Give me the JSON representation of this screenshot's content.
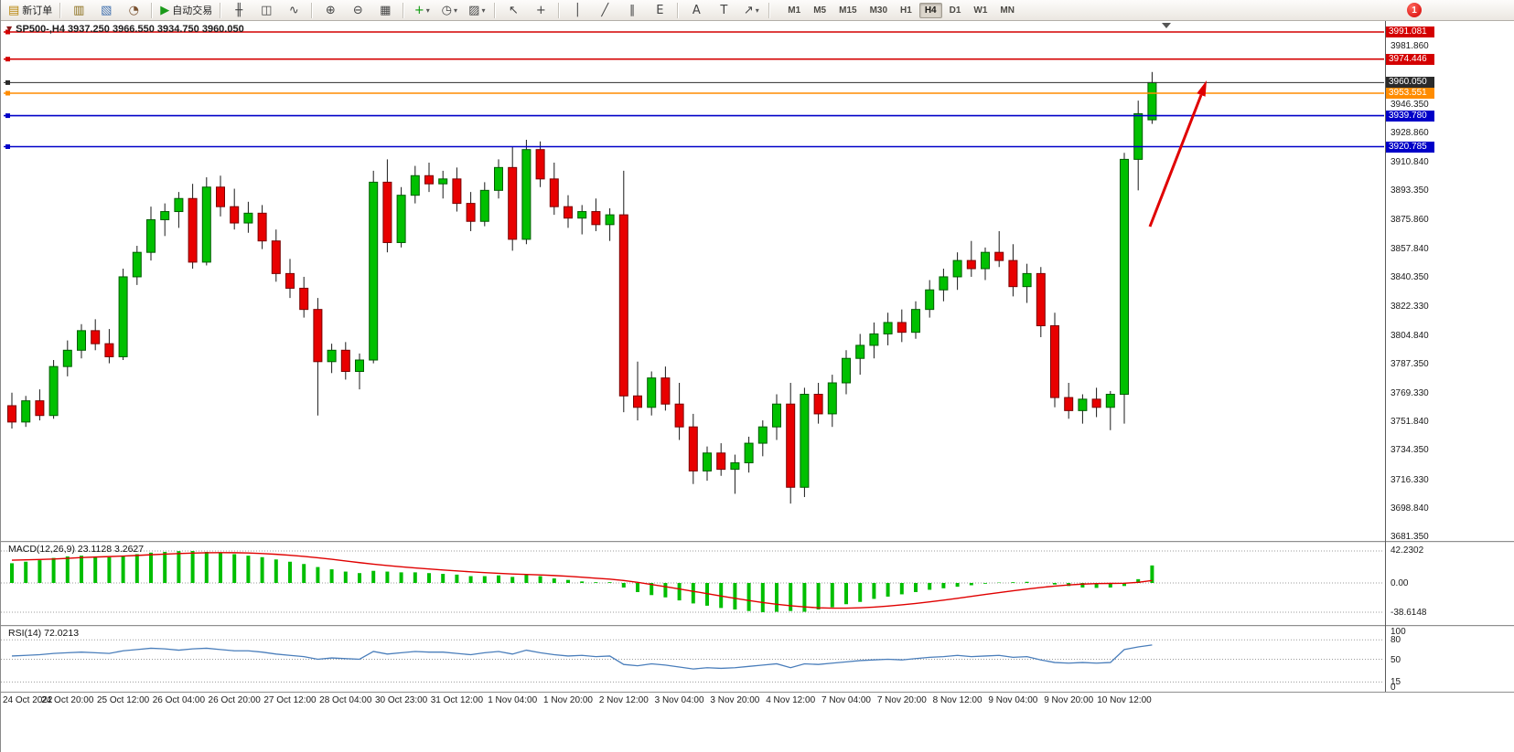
{
  "toolbar": {
    "groups": [
      {
        "items": [
          {
            "name": "new-order-button",
            "icon": "▤",
            "icon_color": "#b8860b",
            "label": "新订单"
          }
        ]
      },
      {
        "items": [
          {
            "name": "chart-window-button",
            "icon": "▥",
            "icon_color": "#8a6d1a"
          },
          {
            "name": "profiles-button",
            "icon": "▧",
            "icon_color": "#3f6fae"
          },
          {
            "name": "refresh-button",
            "icon": "◔",
            "icon_color": "#7a5230"
          }
        ]
      },
      {
        "items": [
          {
            "name": "autotrading-button",
            "icon": "▶",
            "icon_color": "#1a9a1a",
            "label": "自动交易"
          }
        ]
      },
      {
        "items": [
          {
            "name": "bar-chart-button",
            "icon": "╫",
            "icon_color": "#444"
          },
          {
            "name": "candlestick-chart-button",
            "icon": "◫",
            "icon_color": "#444"
          },
          {
            "name": "line-chart-button",
            "icon": "∿",
            "icon_color": "#444"
          }
        ]
      },
      {
        "items": [
          {
            "name": "zoom-in-button",
            "icon": "⊕",
            "icon_color": "#444"
          },
          {
            "name": "zoom-out-button",
            "icon": "⊖",
            "icon_color": "#444"
          },
          {
            "name": "tile-windows-button",
            "icon": "▦",
            "icon_color": "#444"
          }
        ]
      },
      {
        "items": [
          {
            "name": "indicators-button",
            "icon": "+",
            "icon_color": "#0a9a0a",
            "caret": true
          },
          {
            "name": "periods-button",
            "icon": "◷",
            "icon_color": "#444",
            "caret": true
          },
          {
            "name": "templates-button",
            "icon": "▨",
            "icon_color": "#444",
            "caret": true
          }
        ]
      },
      {
        "items": [
          {
            "name": "cursor-button",
            "icon": "↖",
            "icon_color": "#444"
          },
          {
            "name": "crosshair-button",
            "icon": "+",
            "icon_color": "#444"
          }
        ]
      },
      {
        "items": [
          {
            "name": "vertical-line-button",
            "icon": "│",
            "icon_color": "#444"
          },
          {
            "name": "trendline-button",
            "icon": "╱",
            "icon_color": "#444"
          },
          {
            "name": "channel-button",
            "icon": "∥",
            "icon_color": "#444"
          },
          {
            "name": "elliott-tool-button",
            "icon": "E",
            "icon_color": "#444"
          }
        ]
      },
      {
        "items": [
          {
            "name": "text-button",
            "icon": "A",
            "icon_color": "#444"
          },
          {
            "name": "text-label-button",
            "icon": "T",
            "icon_color": "#444"
          },
          {
            "name": "arrows-button",
            "icon": "↗",
            "icon_color": "#444",
            "caret": true
          }
        ]
      }
    ],
    "timeframes": [
      "M1",
      "M5",
      "M15",
      "M30",
      "H1",
      "H4",
      "D1",
      "W1",
      "MN"
    ],
    "active_timeframe": "H4",
    "notification_badge": "1"
  },
  "chart": {
    "info_line": "SP500-,H4 3937.250 3966.550 3934.750 3960.050"
  },
  "indicators": {
    "macd": {
      "name": "MACD(12,26,9)",
      "macd_value": "23.1128",
      "signal_value": "3.2627"
    },
    "rsi": {
      "name": "RSI(14)",
      "value": "72.0213"
    }
  },
  "colors": {
    "bull": "#00C000",
    "bear": "#E80000",
    "wick": "#1a1a1a",
    "macd_hist": "#00BE00",
    "macd_signal": "#E00000",
    "rsi_line": "#4a7ebb",
    "line_red": "#D40000",
    "line_orange": "#FF8C00",
    "line_blue": "#0000C8",
    "current_price": "#2b2b2b",
    "arrow": "#E00000"
  },
  "chart_data": [
    {
      "type": "candlestick",
      "symbol": "SP500-",
      "timeframe": "H4",
      "current_bar": {
        "open": 3937.25,
        "high": 3966.55,
        "low": 3934.75,
        "close": 3960.05
      },
      "ylim": [
        3681.35,
        3991.081
      ],
      "y_ticks": [
        "3981.860",
        "3946.350",
        "3928.860",
        "3910.840",
        "3893.350",
        "3875.860",
        "3857.840",
        "3840.350",
        "3822.330",
        "3804.840",
        "3787.350",
        "3769.330",
        "3751.840",
        "3734.350",
        "3716.330",
        "3698.840",
        "3681.350"
      ],
      "price_lines": [
        {
          "price": 3991.081,
          "label": "3991.081",
          "color": "#D40000",
          "type": "hline"
        },
        {
          "price": 3974.446,
          "label": "3974.446",
          "color": "#D40000",
          "type": "hline"
        },
        {
          "price": 3960.05,
          "label": "3960.050",
          "color": "#2b2b2b",
          "type": "current"
        },
        {
          "price": 3953.551,
          "label": "3953.551",
          "color": "#FF8C00",
          "type": "hline"
        },
        {
          "price": 3939.78,
          "label": "3939.780",
          "color": "#0000C8",
          "type": "hline"
        },
        {
          "price": 3920.785,
          "label": "3920.785",
          "color": "#0000C8",
          "type": "hline"
        }
      ],
      "ohlc": [
        [
          3762,
          3770,
          3748,
          3752
        ],
        [
          3752,
          3768,
          3749,
          3765
        ],
        [
          3765,
          3772,
          3753,
          3756
        ],
        [
          3756,
          3790,
          3754,
          3786
        ],
        [
          3786,
          3802,
          3780,
          3796
        ],
        [
          3796,
          3812,
          3791,
          3808
        ],
        [
          3808,
          3815,
          3796,
          3800
        ],
        [
          3800,
          3809,
          3788,
          3792
        ],
        [
          3792,
          3846,
          3790,
          3841
        ],
        [
          3841,
          3860,
          3836,
          3856
        ],
        [
          3856,
          3884,
          3851,
          3876
        ],
        [
          3876,
          3886,
          3866,
          3881
        ],
        [
          3881,
          3893,
          3871,
          3889
        ],
        [
          3889,
          3898,
          3846,
          3850
        ],
        [
          3850,
          3902,
          3848,
          3896
        ],
        [
          3896,
          3903,
          3878,
          3884
        ],
        [
          3884,
          3895,
          3870,
          3874
        ],
        [
          3874,
          3887,
          3868,
          3880
        ],
        [
          3880,
          3885,
          3858,
          3863
        ],
        [
          3863,
          3870,
          3838,
          3843
        ],
        [
          3843,
          3852,
          3828,
          3834
        ],
        [
          3834,
          3841,
          3816,
          3821
        ],
        [
          3821,
          3828,
          3756,
          3789
        ],
        [
          3789,
          3800,
          3782,
          3796
        ],
        [
          3796,
          3801,
          3778,
          3783
        ],
        [
          3783,
          3794,
          3772,
          3790
        ],
        [
          3790,
          3906,
          3788,
          3899
        ],
        [
          3899,
          3913,
          3856,
          3862
        ],
        [
          3862,
          3896,
          3859,
          3891
        ],
        [
          3891,
          3909,
          3886,
          3903
        ],
        [
          3903,
          3911,
          3893,
          3898
        ],
        [
          3898,
          3906,
          3889,
          3901
        ],
        [
          3901,
          3908,
          3881,
          3886
        ],
        [
          3886,
          3893,
          3869,
          3875
        ],
        [
          3875,
          3899,
          3872,
          3894
        ],
        [
          3894,
          3913,
          3889,
          3908
        ],
        [
          3908,
          3921,
          3857,
          3864
        ],
        [
          3864,
          3925,
          3861,
          3919
        ],
        [
          3919,
          3924,
          3896,
          3901
        ],
        [
          3901,
          3911,
          3879,
          3884
        ],
        [
          3884,
          3891,
          3871,
          3877
        ],
        [
          3877,
          3885,
          3867,
          3881
        ],
        [
          3881,
          3889,
          3869,
          3873
        ],
        [
          3873,
          3883,
          3863,
          3879
        ],
        [
          3879,
          3906,
          3758,
          3768
        ],
        [
          3768,
          3789,
          3753,
          3761
        ],
        [
          3761,
          3783,
          3756,
          3779
        ],
        [
          3779,
          3786,
          3759,
          3763
        ],
        [
          3763,
          3776,
          3741,
          3749
        ],
        [
          3749,
          3757,
          3714,
          3722
        ],
        [
          3722,
          3737,
          3716,
          3733
        ],
        [
          3733,
          3739,
          3719,
          3723
        ],
        [
          3723,
          3732,
          3708,
          3727
        ],
        [
          3727,
          3743,
          3721,
          3739
        ],
        [
          3739,
          3753,
          3731,
          3749
        ],
        [
          3749,
          3769,
          3741,
          3763
        ],
        [
          3763,
          3776,
          3702,
          3712
        ],
        [
          3712,
          3773,
          3706,
          3769
        ],
        [
          3769,
          3776,
          3751,
          3757
        ],
        [
          3757,
          3781,
          3749,
          3776
        ],
        [
          3776,
          3796,
          3769,
          3791
        ],
        [
          3791,
          3806,
          3781,
          3799
        ],
        [
          3799,
          3813,
          3791,
          3806
        ],
        [
          3806,
          3819,
          3799,
          3813
        ],
        [
          3813,
          3821,
          3801,
          3807
        ],
        [
          3807,
          3826,
          3803,
          3821
        ],
        [
          3821,
          3839,
          3816,
          3833
        ],
        [
          3833,
          3846,
          3826,
          3841
        ],
        [
          3841,
          3856,
          3833,
          3851
        ],
        [
          3851,
          3863,
          3841,
          3846
        ],
        [
          3846,
          3859,
          3839,
          3856
        ],
        [
          3856,
          3869,
          3847,
          3851
        ],
        [
          3851,
          3861,
          3829,
          3835
        ],
        [
          3835,
          3849,
          3825,
          3843
        ],
        [
          3843,
          3847,
          3804,
          3811
        ],
        [
          3811,
          3819,
          3761,
          3767
        ],
        [
          3767,
          3776,
          3754,
          3759
        ],
        [
          3759,
          3769,
          3751,
          3766
        ],
        [
          3766,
          3773,
          3755,
          3761
        ],
        [
          3761,
          3771,
          3747,
          3769
        ],
        [
          3769,
          3917,
          3751,
          3913
        ],
        [
          3913,
          3949,
          3894,
          3941
        ],
        [
          3937.25,
          3966.55,
          3934.75,
          3960.05
        ]
      ],
      "time_labels": [
        "24 Oct 2022",
        "24 Oct 20:00",
        "25 Oct 12:00",
        "26 Oct 04:00",
        "26 Oct 20:00",
        "27 Oct 12:00",
        "28 Oct 04:00",
        "30 Oct 23:00",
        "31 Oct 12:00",
        "1 Nov 04:00",
        "1 Nov 20:00",
        "2 Nov 12:00",
        "3 Nov 04:00",
        "3 Nov 20:00",
        "4 Nov 12:00",
        "7 Nov 04:00",
        "7 Nov 20:00",
        "8 Nov 12:00",
        "9 Nov 04:00",
        "9 Nov 20:00",
        "10 Nov 12:00"
      ],
      "label_step": 4,
      "annotations": [
        {
          "type": "arrow",
          "color": "#E00000",
          "note": "up-trend arrow pointing to new high"
        }
      ]
    },
    {
      "type": "bar",
      "name": "MACD(12,26,9)",
      "values": {
        "macd": 23.1128,
        "signal": 3.2627
      },
      "scale_labels": [
        "42.2302",
        "0.00",
        "-38.6148"
      ],
      "ylim": [
        -45,
        47
      ],
      "histogram": [
        26,
        28,
        30,
        33,
        35,
        36,
        35,
        34,
        36,
        38,
        40,
        41,
        42,
        42.2,
        41,
        40,
        38,
        36,
        34,
        31,
        28,
        25,
        21,
        18,
        15,
        13,
        16,
        15,
        14,
        14,
        13,
        12,
        11,
        9,
        9,
        10,
        8,
        11,
        9,
        6,
        4,
        2,
        1,
        1,
        -6,
        -12,
        -16,
        -19,
        -23,
        -27,
        -30,
        -33,
        -35,
        -37,
        -38.6,
        -38,
        -37,
        -38,
        -35,
        -32,
        -28,
        -25,
        -21,
        -18,
        -15,
        -12,
        -9,
        -7,
        -5,
        -3,
        -1,
        0.5,
        1,
        1.5,
        0,
        -2,
        -4,
        -6,
        -6.5,
        -6,
        -4,
        5,
        23.11
      ],
      "signal": [
        30,
        30.5,
        31,
        31.5,
        32.5,
        33.5,
        34.2,
        34.8,
        35.5,
        36.3,
        37.2,
        38,
        38.8,
        39.4,
        39.8,
        40,
        39.9,
        39.5,
        38.8,
        37.8,
        36.5,
        35,
        33.2,
        31.2,
        29,
        26.8,
        24.8,
        23,
        21.3,
        19.8,
        18.4,
        17.1,
        15.9,
        14.7,
        13.6,
        12.7,
        11.8,
        11.2,
        10.6,
        9.8,
        8.8,
        7.6,
        6.3,
        5.1,
        3.2,
        0.8,
        -2,
        -4.9,
        -7.9,
        -11,
        -14.1,
        -17.2,
        -20.2,
        -23.1,
        -25.8,
        -28.1,
        -30,
        -31.6,
        -32.7,
        -33.2,
        -33.2,
        -32.7,
        -31.8,
        -30.5,
        -28.9,
        -27,
        -24.9,
        -22.6,
        -20.2,
        -17.7,
        -15.2,
        -12.7,
        -10.3,
        -8,
        -5.9,
        -4.1,
        -2.6,
        -1.5,
        -0.8,
        -0.6,
        -0.4,
        0.8,
        3.26
      ]
    },
    {
      "type": "line",
      "name": "RSI(14)",
      "value": 72.0213,
      "levels": [
        80,
        50,
        15
      ],
      "scale_labels": [
        "100",
        "80",
        "50",
        "15",
        "0"
      ],
      "ylim": [
        0,
        100
      ],
      "values": [
        55,
        56,
        57,
        59,
        60,
        61,
        60,
        59,
        63,
        65,
        67,
        66,
        64,
        66,
        67,
        65,
        63,
        63,
        61,
        58,
        56,
        54,
        50,
        52,
        51,
        50,
        62,
        58,
        60,
        62,
        61,
        61,
        59,
        57,
        60,
        62,
        58,
        64,
        60,
        57,
        55,
        56,
        54,
        55,
        42,
        40,
        43,
        41,
        38,
        35,
        37,
        36,
        37,
        39,
        41,
        43,
        37,
        43,
        42,
        44,
        46,
        48,
        49,
        50,
        49,
        51,
        53,
        54,
        56,
        54,
        55,
        56,
        53,
        54,
        49,
        45,
        44,
        45,
        44,
        45,
        65,
        69,
        72.02
      ]
    }
  ]
}
